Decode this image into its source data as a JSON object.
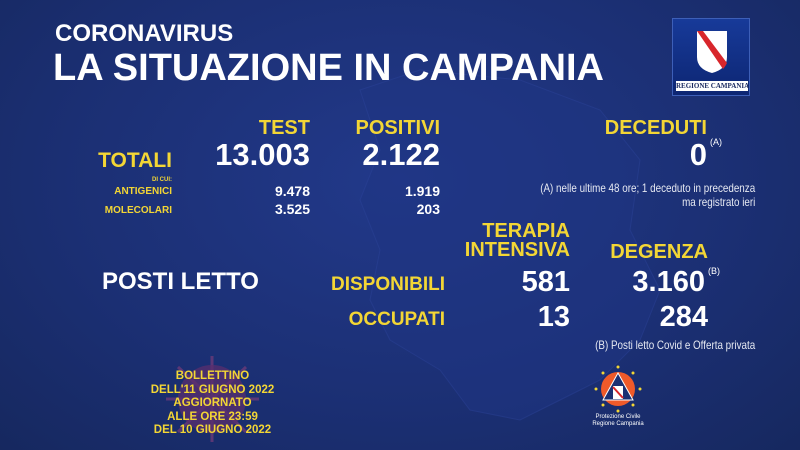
{
  "header": {
    "kicker": "CORONAVIRUS",
    "title": "LA SITUAZIONE IN CAMPANIA",
    "logo_text": "REGIONE CAMPANIA"
  },
  "tests": {
    "col_test": "TEST",
    "col_positivi": "POSITIVI",
    "totali_label": "TOTALI",
    "totali_test": "13.003",
    "totali_positivi": "2.122",
    "di_cui": "DI CUI:",
    "rows": [
      {
        "label": "ANTIGENICI",
        "test": "9.478",
        "positivi": "1.919"
      },
      {
        "label": "MOLECOLARI",
        "test": "3.525",
        "positivi": "203"
      }
    ]
  },
  "deaths": {
    "label": "DECEDUTI",
    "value": "0",
    "marker": "(A)",
    "note_line1": "(A) nelle ultime 48 ore; 1 deceduto in precedenza",
    "note_line2": "ma registrato ieri"
  },
  "beds": {
    "title": "POSTI LETTO",
    "col_ti_line1": "TERAPIA",
    "col_ti_line2": "INTENSIVA",
    "col_degenza": "DEGENZA",
    "disponibili_label": "DISPONIBILI",
    "disponibili_ti": "581",
    "disponibili_degenza": "3.160",
    "marker": "(B)",
    "occupati_label": "OCCUPATI",
    "occupati_ti": "13",
    "occupati_degenza": "284",
    "note": "(B) Posti letto Covid e Offerta privata"
  },
  "bulletin": [
    "BOLLETTINO",
    "DELL'11 GIUGNO 2022",
    "AGGIORNATO",
    "ALLE ORE 23:59",
    "DEL 10 GIUGNO 2022"
  ],
  "protezione": {
    "line1": "Protezione Civile",
    "line2": "Regione Campania"
  },
  "colors": {
    "background": "#1b2f73",
    "accent": "#f3d635",
    "text": "#ffffff"
  }
}
